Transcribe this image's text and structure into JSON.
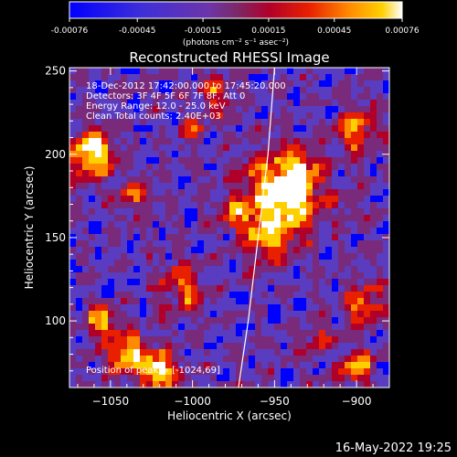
{
  "colorbar": {
    "ticks": [
      "-0.00076",
      "-0.00045",
      "-0.00015",
      "0.00015",
      "0.00045",
      "0.00076"
    ],
    "label": "(photons cm⁻² s⁻¹ asec⁻²)",
    "range": [
      -0.00076,
      0.00076
    ]
  },
  "annotations": {
    "time": "18-Dec-2012 17:42:00.000 to 17:45:20.000",
    "detectors": "Detectors: 3F 4F 5F 6F 7F 8F, Att 0",
    "energy": "Energy Range: 12.0 - 25.0 keV",
    "clean": "Clean     Total counts: 2.40E+03",
    "position": "Position of peak = [-1024,69]"
  },
  "footer": {
    "timestamp": "16-May-2022 19:25"
  },
  "chart_data": {
    "type": "heatmap",
    "title": "Reconstructed RHESSI Image",
    "xlabel": "Heliocentric X (arcsec)",
    "ylabel": "Heliocentric Y (arcsec)",
    "xlim": [
      -1075,
      -880
    ],
    "ylim": [
      60,
      252
    ],
    "x_ticks": [
      -1050,
      -1000,
      -950,
      -900
    ],
    "x_tick_labels": [
      "−1050",
      "−1000",
      "−950",
      "−900"
    ],
    "y_ticks": [
      100,
      150,
      200,
      250
    ],
    "y_tick_labels": [
      "100",
      "150",
      "200",
      "250"
    ],
    "peak": [
      -1024,
      69
    ],
    "limb_curve": [
      [
        -972,
        60
      ],
      [
        -966,
        100
      ],
      [
        -960,
        150
      ],
      [
        -954,
        200
      ],
      [
        -950,
        252
      ]
    ],
    "colors": [
      "#0000ff",
      "#5a3cc0",
      "#7a2a7a",
      "#b0002a",
      "#e82000",
      "#ff8a00",
      "#ffd000",
      "#ffffff"
    ]
  }
}
